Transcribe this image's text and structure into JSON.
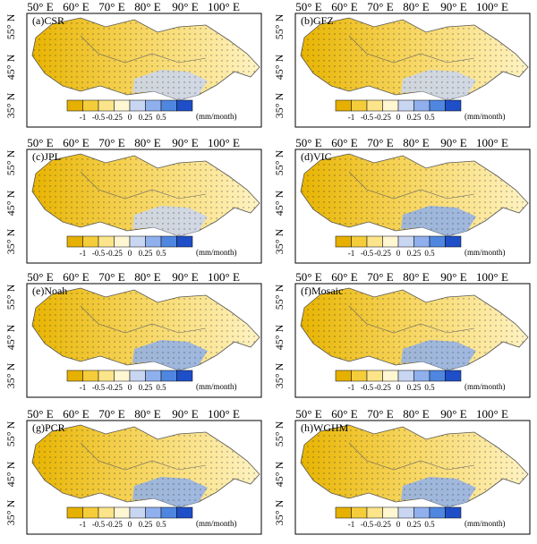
{
  "panels": [
    {
      "label": "(a)CSR"
    },
    {
      "label": "(b)GFZ"
    },
    {
      "label": "(c)JPL"
    },
    {
      "label": "(d)VIC"
    },
    {
      "label": "(e)Noah"
    },
    {
      "label": "(f)Mosaic"
    },
    {
      "label": "(g)PCR"
    },
    {
      "label": "(h)WGHM"
    }
  ],
  "lon_ticks": [
    "50° E",
    "60° E",
    "70° E",
    "80° E",
    "90° E",
    "100° E"
  ],
  "lat_ticks": [
    "55° N",
    "45° N",
    "35° N"
  ],
  "colorbar": {
    "ticks": [
      "-1",
      "-0.5",
      "-0.25",
      "0",
      "0.25",
      "0.5"
    ],
    "unit": "(mm/month)"
  }
}
